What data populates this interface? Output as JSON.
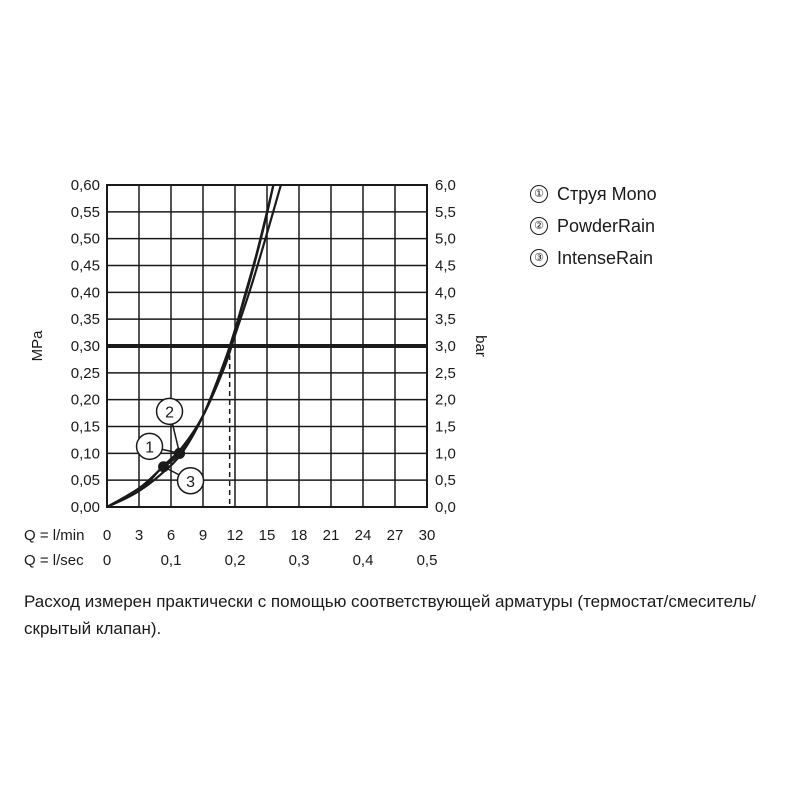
{
  "chart_data": {
    "type": "line",
    "ylabel_left": "MPa",
    "ylabel_right": "bar",
    "ylim": [
      0,
      0.6
    ],
    "xlim_lmin": [
      0,
      30
    ],
    "y_ticks_left": [
      "0,00",
      "0,05",
      "0,10",
      "0,15",
      "0,20",
      "0,25",
      "0,30",
      "0,35",
      "0,40",
      "0,45",
      "0,50",
      "0,55",
      "0,60"
    ],
    "y_ticks_right": [
      "0,0",
      "0,5",
      "1,0",
      "1,5",
      "2,0",
      "2,5",
      "3,0",
      "3,5",
      "4,0",
      "4,5",
      "5,0",
      "5,5",
      "6,0"
    ],
    "x_axis_lmin": {
      "label": "Q = l/min",
      "ticks": [
        {
          "value": 0,
          "label": "0"
        },
        {
          "value": 3,
          "label": "3"
        },
        {
          "value": 6,
          "label": "6"
        },
        {
          "value": 9,
          "label": "9"
        },
        {
          "value": 12,
          "label": "12"
        },
        {
          "value": 15,
          "label": "15"
        },
        {
          "value": 18,
          "label": "18"
        },
        {
          "value": 21,
          "label": "21"
        },
        {
          "value": 24,
          "label": "24"
        },
        {
          "value": 27,
          "label": "27"
        },
        {
          "value": 30,
          "label": "30"
        }
      ]
    },
    "x_axis_lsec": {
      "label": "Q = l/sec",
      "ticks": [
        {
          "value": 0,
          "label": "0"
        },
        {
          "value": 0.1,
          "label": "0,1"
        },
        {
          "value": 0.2,
          "label": "0,2"
        },
        {
          "value": 0.3,
          "label": "0,3"
        },
        {
          "value": 0.4,
          "label": "0,4"
        },
        {
          "value": 0.5,
          "label": "0,5"
        }
      ]
    },
    "reference_line": {
      "y": 0.3,
      "x_intersect_lmin": 11.5
    },
    "series": [
      {
        "name": "Струя Mono",
        "marker": "①",
        "points": [
          [
            0,
            0
          ],
          [
            3,
            0.03
          ],
          [
            5,
            0.06
          ],
          [
            7,
            0.1
          ],
          [
            9,
            0.17
          ],
          [
            11,
            0.27
          ],
          [
            12,
            0.33
          ],
          [
            13,
            0.4
          ],
          [
            14,
            0.47
          ],
          [
            15,
            0.55
          ],
          [
            15.6,
            0.6
          ]
        ]
      },
      {
        "name": "PowderRain",
        "marker": "②",
        "points": [
          [
            0,
            0
          ],
          [
            3,
            0.035
          ],
          [
            5,
            0.07
          ],
          [
            6.8,
            0.1
          ],
          [
            9,
            0.17
          ],
          [
            11,
            0.27
          ],
          [
            12,
            0.33
          ],
          [
            13.5,
            0.43
          ],
          [
            14.8,
            0.53
          ],
          [
            15.6,
            0.6
          ]
        ]
      },
      {
        "name": "IntenseRain",
        "marker": "③",
        "points": [
          [
            0,
            0
          ],
          [
            3,
            0.03
          ],
          [
            5.2,
            0.075
          ],
          [
            7,
            0.11
          ],
          [
            9,
            0.17
          ],
          [
            11,
            0.26
          ],
          [
            12,
            0.32
          ],
          [
            13.5,
            0.41
          ],
          [
            15,
            0.51
          ],
          [
            16.3,
            0.6
          ]
        ]
      }
    ],
    "operating_points": [
      {
        "series": "Струя Mono",
        "x": 6.8,
        "y": 0.1,
        "callout": "1"
      },
      {
        "series": "PowderRain",
        "x": 6.8,
        "y": 0.1,
        "callout": "2"
      },
      {
        "series": "IntenseRain",
        "x": 5.3,
        "y": 0.075,
        "callout": "3"
      }
    ]
  },
  "legend": [
    {
      "marker": "①",
      "label": "Струя Mono"
    },
    {
      "marker": "②",
      "label": "PowderRain"
    },
    {
      "marker": "③",
      "label": "IntenseRain"
    }
  ],
  "footnote": "Расход измерен практически с помощью соответствующей арматуры (термостат/смеситель/скрытый клапан)."
}
